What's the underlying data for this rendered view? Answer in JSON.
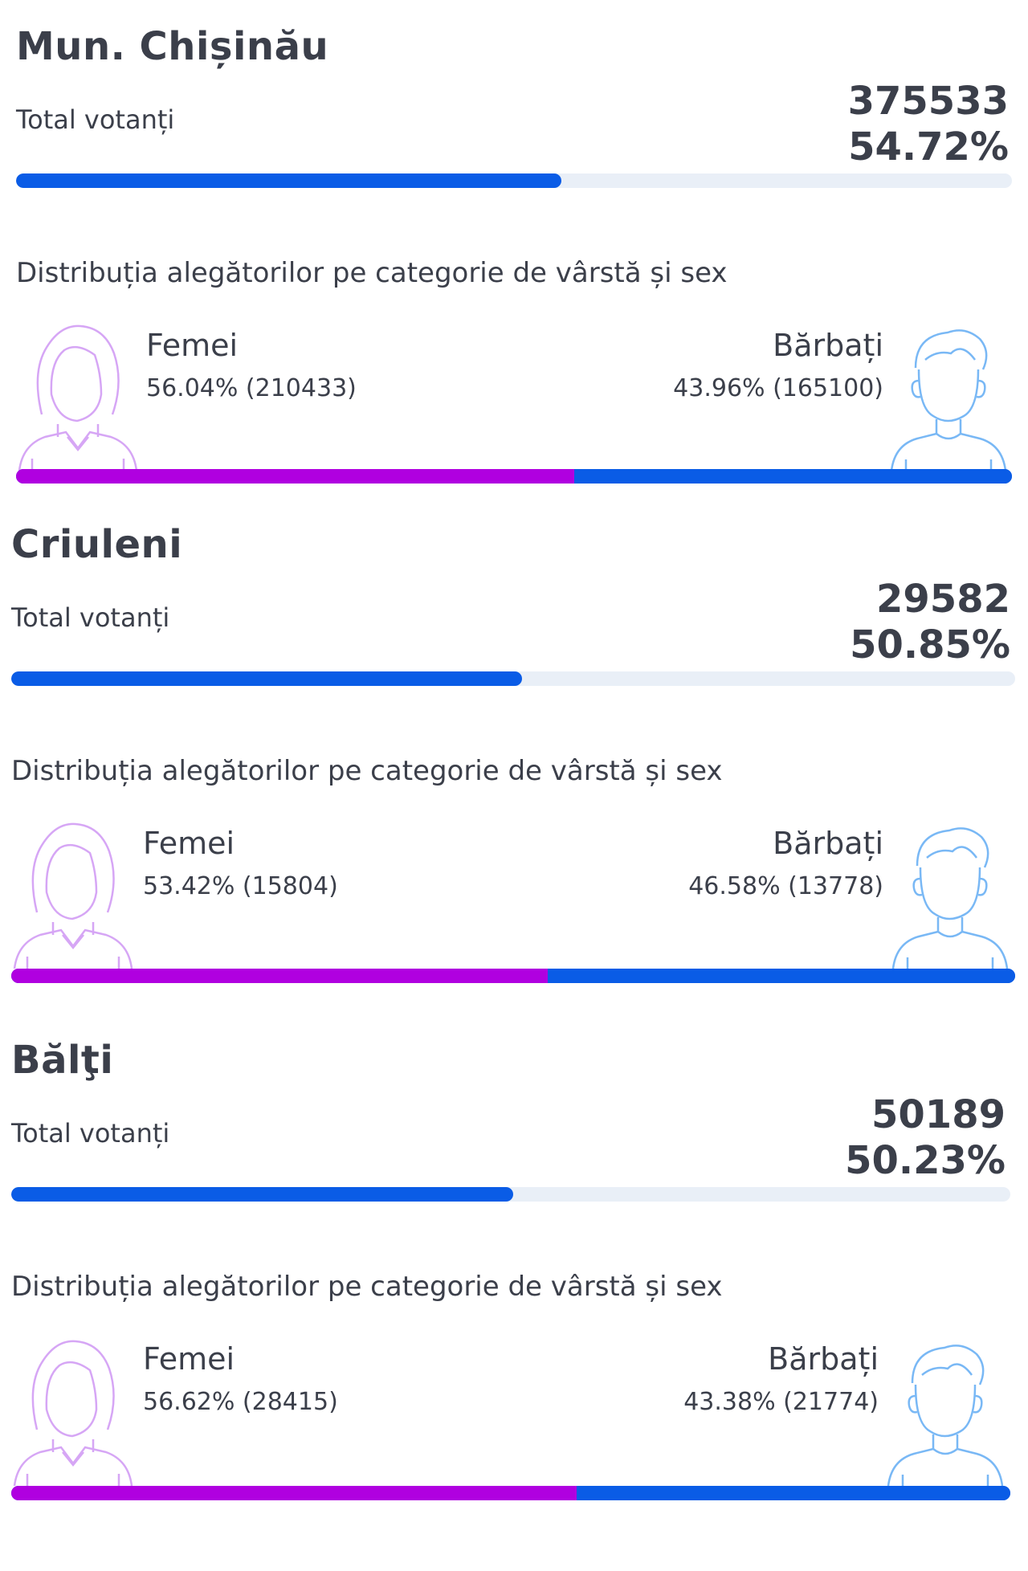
{
  "regions": [
    {
      "name": "Mun. Chișinău",
      "total_label": "Total votanți",
      "total_count": "375533",
      "total_percent": "54.72%",
      "turnout_fraction": 0.5472,
      "distribution_title": "Distribuția alegătorilor pe categorie de vârstă și sex",
      "female": {
        "label": "Femei",
        "stat": "56.04% (210433)",
        "fraction": 0.5604
      },
      "male": {
        "label": "Bărbați",
        "stat": "43.96% (165100)",
        "fraction": 0.4396
      }
    },
    {
      "name": "Criuleni",
      "total_label": "Total votanți",
      "total_count": "29582",
      "total_percent": "50.85%",
      "turnout_fraction": 0.5085,
      "distribution_title": "Distribuția alegătorilor pe categorie de vârstă și sex",
      "female": {
        "label": "Femei",
        "stat": "53.42% (15804)",
        "fraction": 0.5342
      },
      "male": {
        "label": "Bărbați",
        "stat": "46.58% (13778)",
        "fraction": 0.4658
      }
    },
    {
      "name": "Bălţi",
      "total_label": "Total votanți",
      "total_count": "50189",
      "total_percent": "50.23%",
      "turnout_fraction": 0.5023,
      "distribution_title": "Distribuția alegătorilor pe categorie de vârstă și sex",
      "female": {
        "label": "Femei",
        "stat": "56.62% (28415)",
        "fraction": 0.5662
      },
      "male": {
        "label": "Bărbați",
        "stat": "43.38% (21774)",
        "fraction": 0.4338
      }
    }
  ],
  "colors": {
    "turnout_fill": "#0a5ce6",
    "turnout_track": "#e9eff7",
    "female_bar": "#b000e0",
    "male_bar": "#0a5ce6",
    "female_icon": "#d6a6f5",
    "male_icon": "#79b8f5"
  },
  "icons": {
    "female": "woman-avatar-icon",
    "male": "man-avatar-icon"
  }
}
